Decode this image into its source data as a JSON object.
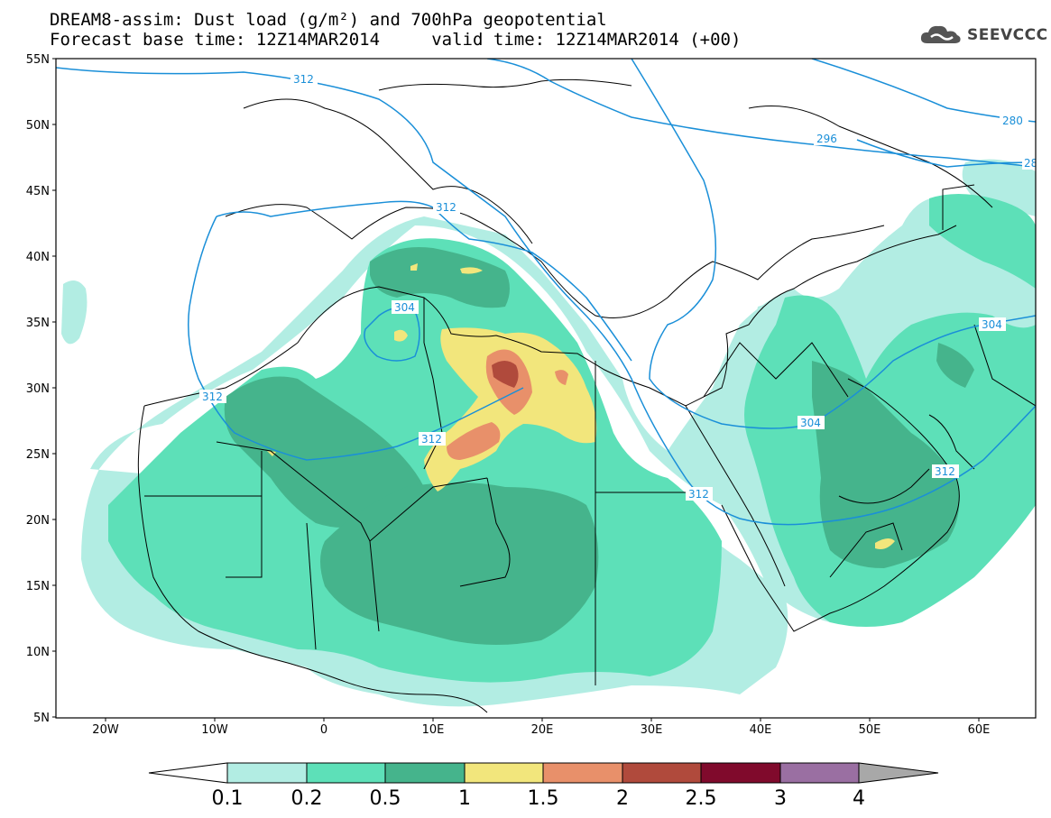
{
  "title": {
    "line1": "DREAM8-assim: Dust load (g/m²) and 700hPa geopotential",
    "line2": "Forecast base time: 12Z14MAR2014     valid time: 12Z14MAR2014 (+00)"
  },
  "logo": {
    "text": "SEEVCCC",
    "icon": "cloud-icon"
  },
  "axes": {
    "lat_labels": [
      "55N",
      "50N",
      "45N",
      "40N",
      "35N",
      "30N",
      "25N",
      "20N",
      "15N",
      "10N",
      "5N"
    ],
    "lon_labels": [
      "20W",
      "10W",
      "0",
      "10E",
      "20E",
      "30E",
      "40E",
      "50E",
      "60E"
    ],
    "lon_range": [
      -25,
      65
    ],
    "lat_range": [
      5,
      55
    ]
  },
  "contours": {
    "color": "#1a8fd8",
    "labels": [
      "312",
      "296",
      "280",
      "28",
      "312",
      "304",
      "312",
      "312",
      "312",
      "304",
      "304",
      "312"
    ]
  },
  "colorbar": {
    "labels": [
      "0.1",
      "0.2",
      "0.5",
      "1",
      "1.5",
      "2",
      "2.5",
      "3",
      "4"
    ],
    "colors": [
      "#b2ede3",
      "#5de0b8",
      "#45b48c",
      "#f2e67c",
      "#e8906a",
      "#b04a3c",
      "#800a2c",
      "#9a6fa2"
    ],
    "over_color": "#a8a8a8",
    "under_color": "#ffffff"
  }
}
